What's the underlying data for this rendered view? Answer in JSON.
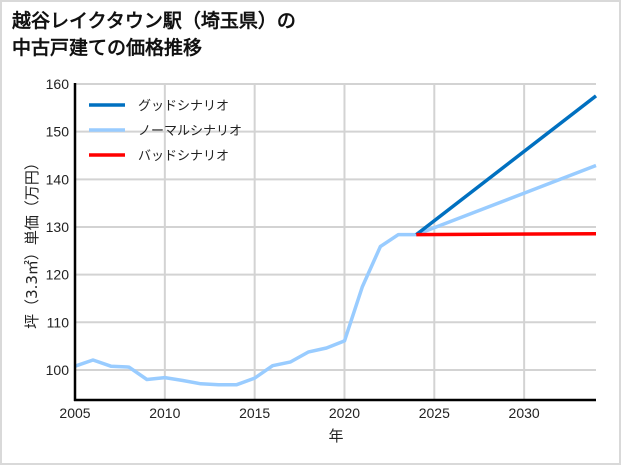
{
  "title": {
    "line1": "越谷レイクタウン駅（埼玉県）の",
    "line2": "中古戸建ての価格推移"
  },
  "chart_data": {
    "type": "line",
    "title": "越谷レイクタウン駅（埼玉県）の中古戸建ての価格推移",
    "xlabel": "年",
    "ylabel": "坪（3.3㎡）単価（万円）",
    "xlim": [
      2005,
      2034
    ],
    "ylim": [
      93.7,
      160
    ],
    "xticks": [
      2005,
      2010,
      2015,
      2020,
      2025,
      2030
    ],
    "yticks": [
      100,
      110,
      120,
      130,
      140,
      150,
      160
    ],
    "grid": true,
    "legend_position": "upper left",
    "x": [
      2005,
      2006,
      2007,
      2008,
      2009,
      2010,
      2011,
      2012,
      2013,
      2014,
      2015,
      2016,
      2017,
      2018,
      2019,
      2020,
      2021,
      2022,
      2023,
      2024
    ],
    "series": [
      {
        "name": "グッドシナリオ",
        "color": "#0070c0",
        "x": [
          2024,
          2034
        ],
        "values": [
          128.4,
          157.5
        ]
      },
      {
        "name": "ノーマルシナリオ",
        "color": "#99ccff",
        "x": [
          2005,
          2006,
          2007,
          2008,
          2009,
          2010,
          2011,
          2012,
          2013,
          2014,
          2015,
          2016,
          2017,
          2018,
          2019,
          2020,
          2021,
          2022,
          2023,
          2024,
          2034
        ],
        "values": [
          100.8,
          102.1,
          100.8,
          100.6,
          98.0,
          98.4,
          97.8,
          97.1,
          96.9,
          96.9,
          98.3,
          100.9,
          101.7,
          103.8,
          104.6,
          106.1,
          117.5,
          125.9,
          128.4,
          128.4,
          142.9
        ]
      },
      {
        "name": "バッドシナリオ",
        "color": "#ff0000",
        "x": [
          2024,
          2034
        ],
        "values": [
          128.4,
          128.6
        ]
      }
    ]
  }
}
